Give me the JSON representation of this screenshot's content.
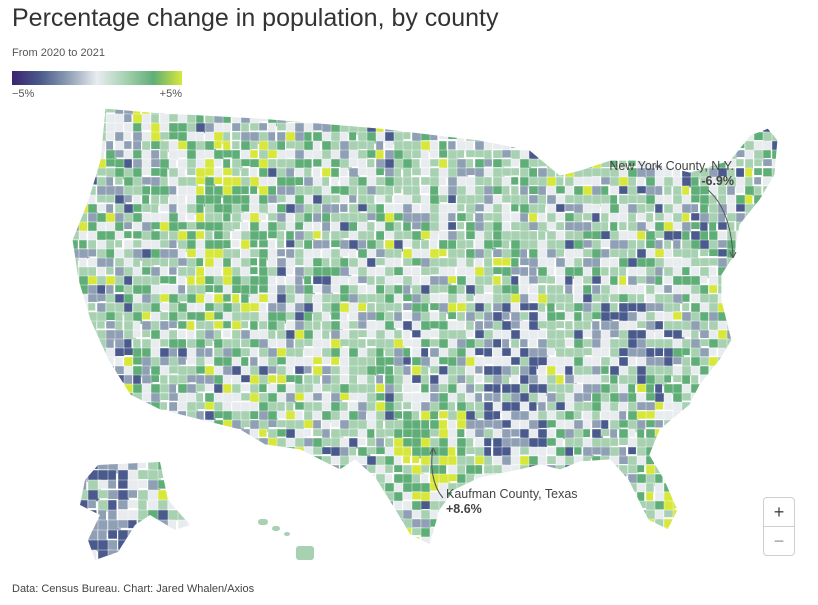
{
  "title": "Percentage change in population, by county",
  "subtitle": "From 2020 to 2021",
  "legend": {
    "min_label": "−5%",
    "max_label": "+5%",
    "colors": [
      "#3b2470",
      "#4a5a8c",
      "#8f9fb4",
      "#e8ecef",
      "#a7d1b1",
      "#5fae78",
      "#d7e83a"
    ]
  },
  "annotations": {
    "ny": {
      "name": "New York County, N.Y.",
      "value": "-6.9%"
    },
    "tx": {
      "name": "Kaufman County, Texas",
      "value": "+8.6%"
    }
  },
  "zoom": {
    "in_label": "+",
    "out_label": "−"
  },
  "source": "Data: Census Bureau. Chart: Jared Whalen/Axios"
}
